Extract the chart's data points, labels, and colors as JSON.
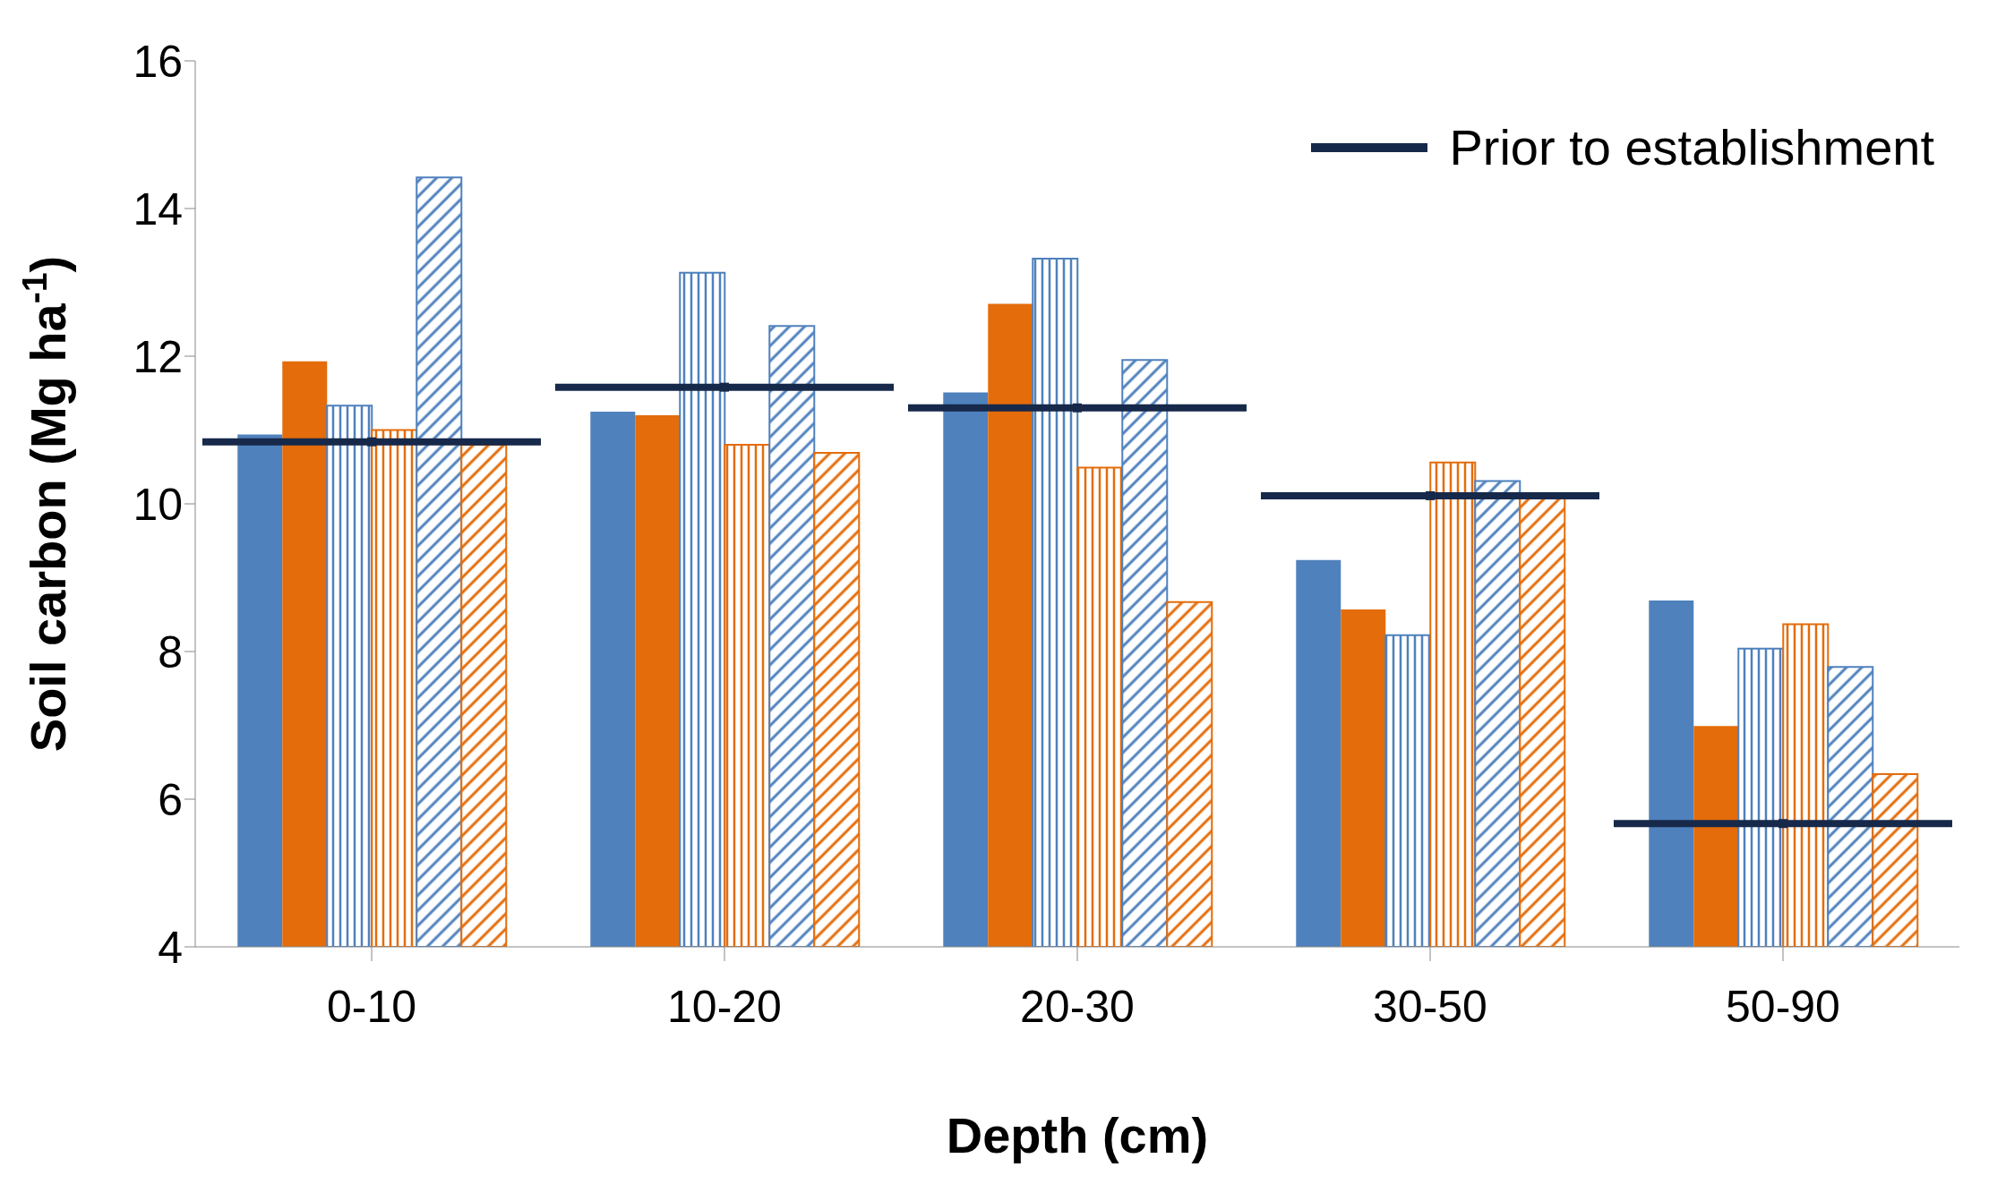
{
  "chart_data": {
    "type": "bar",
    "xlabel": "Depth (cm)",
    "ylabel": "Soil carbon (Mg ha$^{-1}$)",
    "categories": [
      "0-10",
      "10-20",
      "20-30",
      "30-50",
      "50-90"
    ],
    "series": [
      {
        "color": "#4f81bd",
        "values": [
          10.94,
          11.25,
          11.51,
          9.24,
          8.69
        ]
      },
      {
        "color": "#e46c0a",
        "values": [
          11.93,
          11.2,
          12.71,
          8.57,
          6.99
        ]
      },
      {
        "color": "#4f81bd",
        "values": [
          11.33,
          13.13,
          13.32,
          8.22,
          8.04
        ]
      },
      {
        "color": "#e46c0a",
        "values": [
          11.0,
          10.8,
          10.49,
          10.56,
          8.37
        ]
      },
      {
        "color": "#4f81bd",
        "values": [
          14.42,
          12.41,
          11.95,
          10.31,
          7.79
        ]
      },
      {
        "color": "#e46c0a",
        "values": [
          10.8,
          10.69,
          8.67,
          10.1,
          6.34
        ]
      },
      {
        "type": "scatter",
        "name": "Prior to establishment",
        "color": "#17294a",
        "values": [
          10.84,
          11.58,
          11.3,
          10.11,
          5.67
        ]
      }
    ],
    "ylim": [
      4,
      16
    ],
    "yticks": [
      4,
      6,
      8,
      10,
      12,
      14,
      16
    ],
    "legend": "top right"
  }
}
